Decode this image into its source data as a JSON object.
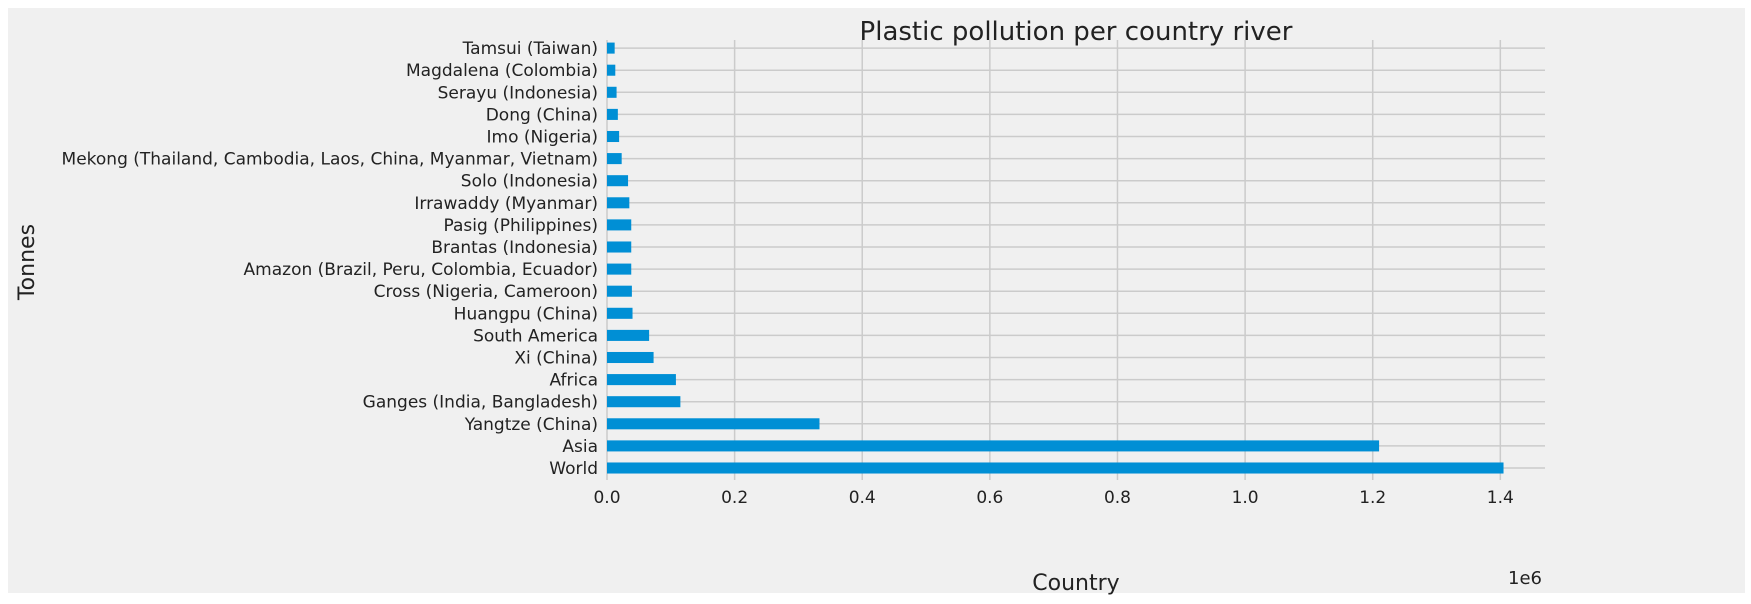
{
  "chart_data": {
    "type": "bar",
    "orientation": "horizontal",
    "title": "Plastic pollution per country river",
    "xlabel": "Country",
    "ylabel": "Tonnes",
    "x_offset_label": "1e6",
    "xlim": [
      0,
      1.47
    ],
    "xticks": [
      "0.0",
      "0.2",
      "0.4",
      "0.6",
      "0.8",
      "1.0",
      "1.2",
      "1.4"
    ],
    "grid": true,
    "bar_color": "#008fd5",
    "background_color": "#f0f0f0",
    "grid_color": "#cbcbcb",
    "categories": [
      "World",
      "Asia",
      "Yangtze (China)",
      "Ganges (India, Bangladesh)",
      "Africa",
      "Xi (China)",
      "South America",
      "Huangpu (China)",
      "Cross (Nigeria, Cameroon)",
      "Amazon (Brazil, Peru, Colombia, Ecuador)",
      "Brantas (Indonesia)",
      "Pasig (Philippines)",
      "Irrawaddy (Myanmar)",
      "Solo (Indonesia)",
      "Mekong (Thailand, Cambodia, Laos, China, Myanmar, Vietnam)",
      "Imo (Nigeria)",
      "Dong (China)",
      "Serayu (Indonesia)",
      "Magdalena (Colombia)",
      "Tamsui (Taiwan)"
    ],
    "values": [
      1405000,
      1210000,
      333000,
      115000,
      108000,
      73000,
      66000,
      40000,
      39000,
      38000,
      38000,
      38000,
      35000,
      33000,
      23000,
      19000,
      17000,
      15000,
      13000,
      12000
    ]
  }
}
